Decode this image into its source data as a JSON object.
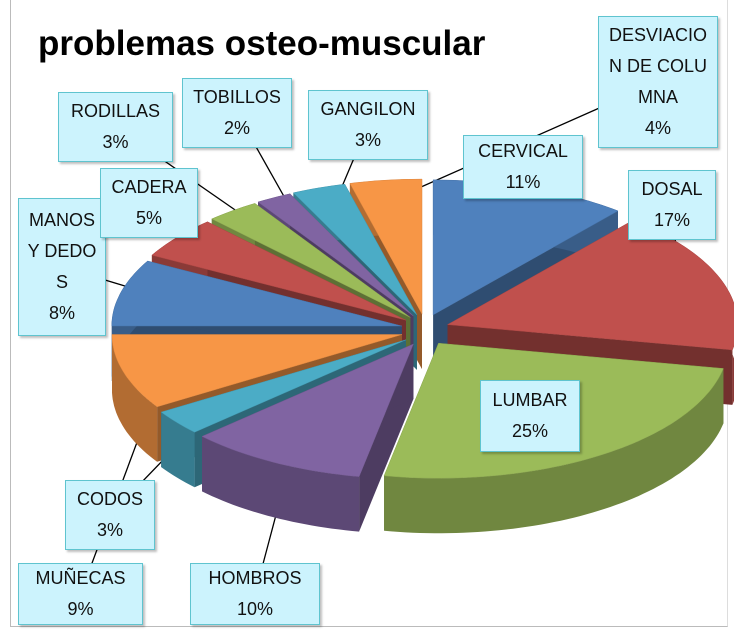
{
  "chart_data": {
    "type": "pie3d",
    "title": "problemas osteo-muscular",
    "categories": [
      "CERVICAL",
      "DOSAL",
      "LUMBAR",
      "HOMBROS",
      "CODOS",
      "MUÑECAS",
      "MANOS Y DEDOS",
      "CADERA",
      "RODILLAS",
      "TOBILLOS",
      "GANGILON",
      "DESVIACION DE COLUMNA"
    ],
    "values": [
      11,
      17,
      25,
      10,
      3,
      9,
      8,
      5,
      3,
      2,
      3,
      4
    ],
    "value_labels": [
      "11%",
      "17%",
      "25%",
      "10%",
      "3%",
      "9%",
      "8%",
      "5%",
      "3%",
      "2%",
      "3%",
      "4%"
    ],
    "colors": [
      "#4f81bd",
      "#c0504d",
      "#9bbb59",
      "#8064a2",
      "#4bacc6",
      "#f79646",
      "#4f81bd",
      "#c0504d",
      "#9bbb59",
      "#8064a2",
      "#4bacc6",
      "#f79646"
    ]
  }
}
